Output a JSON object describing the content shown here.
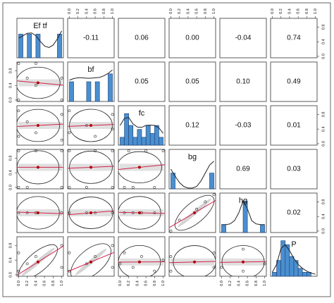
{
  "chart_data": {
    "type": "pairs",
    "variables": [
      "Ef tf",
      "bf",
      "fc",
      "bg",
      "hg",
      "P"
    ],
    "xlim": [
      -0.04,
      1.04
    ],
    "ylim": [
      -0.04,
      1.04
    ],
    "xticks": [
      {
        "value": 0,
        "label": "0.0"
      },
      {
        "value": 0.2,
        "label": "0.2"
      },
      {
        "value": 0.4,
        "label": "0.4"
      },
      {
        "value": 0.6,
        "label": "0.6"
      },
      {
        "value": 0.8,
        "label": "0.8"
      },
      {
        "value": 1,
        "label": "1.0"
      }
    ],
    "yticks": [
      {
        "value": 0,
        "label": "0.0"
      },
      {
        "value": 0.4,
        "label": "0.4"
      },
      {
        "value": 0.8,
        "label": "0.8"
      }
    ],
    "correlations": {
      "values": [
        -0.11,
        0.06,
        0,
        -0.04,
        0.74,
        0.05,
        0.05,
        0.1,
        0.49,
        0.12,
        -0.03,
        0.01,
        0.69,
        0.03,
        0.02
      ],
      "value_labels": [
        "-0.11",
        "0.06",
        "0.00",
        "-0.04",
        "0.74",
        "0.05",
        "0.05",
        "0.10",
        "0.49",
        "0.12",
        "-0.03",
        "0.01",
        "0.69",
        "0.03",
        "0.02"
      ]
    },
    "bins": [
      0,
      0.1,
      0.2,
      0.3,
      0.4,
      0.5,
      0.6,
      0.7,
      0.8,
      0.9,
      1.0
    ],
    "hist_ylim": [
      0,
      10
    ],
    "density_x": [
      0,
      0.1,
      0.2,
      0.3,
      0.4,
      0.5,
      0.6,
      0.7,
      0.8,
      0.9,
      1.0
    ],
    "diagonal": [
      {
        "counts": [
          6,
          0,
          6,
          0,
          6,
          0,
          0,
          0,
          0,
          6
        ],
        "density": [
          5,
          5.6,
          6.2,
          6.3,
          5.6,
          4.2,
          3,
          2.6,
          3.2,
          4.8,
          6.8
        ]
      },
      {
        "counts": [
          5,
          0,
          0,
          0,
          5,
          0,
          5,
          0,
          0,
          7
        ],
        "density": [
          5.4,
          5.8,
          6,
          6,
          5.9,
          5.9,
          6,
          6.1,
          6.5,
          7.1,
          8
        ]
      },
      {
        "counts": [
          2,
          8,
          5,
          2,
          4,
          2,
          5,
          3,
          5,
          2
        ],
        "density": [
          5,
          6.8,
          7,
          5.4,
          4.6,
          4.5,
          5,
          5.1,
          5,
          4.4,
          3
        ]
      },
      {
        "counts": [
          4,
          0,
          0,
          0,
          0,
          0,
          0,
          0,
          0,
          4
        ],
        "density": [
          5,
          3.2,
          1.6,
          0.6,
          0.2,
          0.2,
          0.6,
          2,
          4,
          6,
          7
        ]
      },
      {
        "counts": [
          2,
          0,
          0,
          0,
          0,
          8,
          0,
          0,
          0,
          2
        ],
        "density": [
          2,
          2,
          2.2,
          3,
          5,
          8,
          6,
          3,
          2.2,
          2,
          2
        ]
      },
      {
        "counts": [
          1,
          4,
          9,
          8,
          5,
          4,
          2,
          1,
          1,
          0
        ],
        "density": [
          1,
          3,
          7,
          8,
          6.5,
          4.5,
          3,
          2,
          1.3,
          0.8,
          0.5
        ]
      }
    ],
    "lower": [
      {
        "x": [
          0,
          0,
          0.2,
          0.4,
          0.4,
          1,
          1
        ],
        "y": [
          0,
          1,
          0.6,
          0.4,
          1,
          0,
          0.6
        ],
        "mean_x": 0.45,
        "mean_y": 0.47
      },
      {
        "x": [
          0,
          0,
          0.2,
          0.4,
          1,
          1
        ],
        "y": [
          0.9,
          0.2,
          0.6,
          0.3,
          0.8,
          0.1
        ],
        "mean_x": 0.45,
        "mean_y": 0.5
      },
      {
        "x": [
          0,
          0,
          0.4,
          0.6,
          1,
          1
        ],
        "y": [
          0.9,
          0.3,
          0.5,
          0.2,
          0.8,
          0.4
        ],
        "mean_x": 0.5,
        "mean_y": 0.5
      },
      {
        "x": [
          0,
          0,
          0.2,
          0.4,
          1,
          1
        ],
        "y": [
          0,
          1,
          0,
          1,
          0,
          1
        ],
        "mean_x": 0.45,
        "mean_y": 0.55
      },
      {
        "x": [
          0,
          0,
          0.4,
          0.6,
          1,
          1
        ],
        "y": [
          0,
          1,
          0,
          1,
          0,
          1
        ],
        "mean_x": 0.5,
        "mean_y": 0.55
      },
      {
        "x": [
          0.1,
          0.2,
          0.3,
          0.6,
          0.8,
          1
        ],
        "y": [
          0,
          1,
          0,
          1,
          0,
          1
        ],
        "mean_x": 0.45,
        "mean_y": 0.55
      },
      {
        "x": [
          0,
          0.2,
          0.4,
          1
        ],
        "y": [
          0.5,
          0.5,
          0.5,
          0.5
        ],
        "mean_x": 0.45,
        "mean_y": 0.5
      },
      {
        "x": [
          0,
          0.4,
          0.6,
          1
        ],
        "y": [
          0.5,
          0.5,
          0.5,
          0.5
        ],
        "mean_x": 0.5,
        "mean_y": 0.5
      },
      {
        "x": [
          0.1,
          0.3,
          0.5,
          0.8
        ],
        "y": [
          0.5,
          0.5,
          0.5,
          0.5
        ],
        "mean_x": 0.45,
        "mean_y": 0.5
      },
      {
        "x": [
          0,
          0.2,
          0.6,
          0.8,
          1
        ],
        "y": [
          0,
          0.3,
          0.6,
          0.8,
          1
        ],
        "mean_x": 0.55,
        "mean_y": 0.5
      },
      {
        "x": [
          0,
          0,
          0.2,
          0.4,
          1,
          1
        ],
        "y": [
          0.1,
          0.6,
          0.3,
          0.5,
          0.2,
          0.8
        ],
        "mean_x": 0.45,
        "mean_y": 0.35
      },
      {
        "x": [
          0,
          0,
          0.4,
          0.6,
          1,
          1
        ],
        "y": [
          0.1,
          0.6,
          0.3,
          0.5,
          0.2,
          0.8
        ],
        "mean_x": 0.5,
        "mean_y": 0.35
      },
      {
        "x": [
          0,
          0.1,
          0.3,
          0.5,
          0.8,
          1
        ],
        "y": [
          0.3,
          0.6,
          0.2,
          0.5,
          0.1,
          0.4
        ],
        "mean_x": 0.45,
        "mean_y": 0.35
      },
      {
        "x": [
          0,
          0,
          1,
          1
        ],
        "y": [
          0.1,
          0.5,
          0.2,
          0.6
        ],
        "mean_x": 0.55,
        "mean_y": 0.35
      },
      {
        "x": [
          0,
          0.5,
          0.5,
          1
        ],
        "y": [
          0.2,
          0.1,
          0.7,
          0.3
        ],
        "mean_x": 0.5,
        "mean_y": 0.35
      }
    ]
  }
}
